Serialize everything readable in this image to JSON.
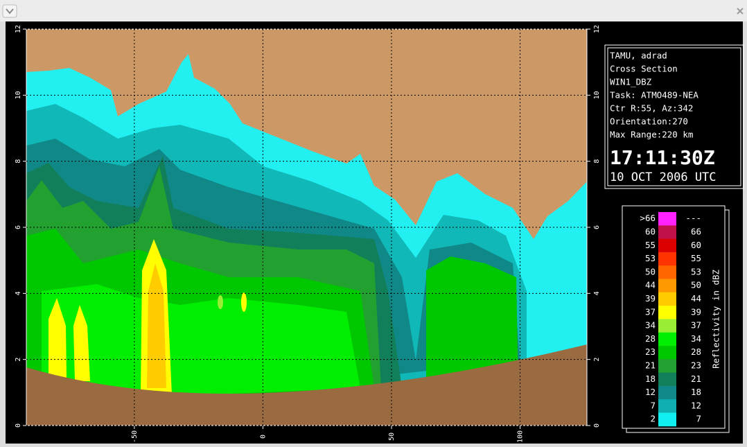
{
  "chart_data": {
    "type": "cross-section",
    "xlim": [
      -92,
      126
    ],
    "xticks": [
      -50,
      0,
      50,
      100
    ],
    "ylim": [
      0,
      12
    ],
    "yticks": [
      0,
      2,
      4,
      6,
      8,
      10,
      12
    ],
    "grid": true,
    "info_panel": {
      "lines": [
        "TAMU, adrad",
        "Cross Section",
        "WIN1_DBZ",
        "Task: ATMO489-NEA",
        "Ctr R:55, Az:342",
        "Orientation:270",
        "Max Range:220 km"
      ],
      "time": "17:11:30Z",
      "date": "10 OCT 2006 UTC"
    },
    "colorbar": {
      "title": "Reflectivity in dBZ",
      "entries": [
        {
          "low": ">66",
          "high": "---",
          "color": "#ff22ff"
        },
        {
          "low": 60,
          "high": 66,
          "color": "#c0104a"
        },
        {
          "low": 55,
          "high": 60,
          "color": "#dd0000"
        },
        {
          "low": 53,
          "high": 55,
          "color": "#ff3300"
        },
        {
          "low": 50,
          "high": 53,
          "color": "#ff6600"
        },
        {
          "low": 44,
          "high": 50,
          "color": "#ff9900"
        },
        {
          "low": 39,
          "high": 44,
          "color": "#ffcc00"
        },
        {
          "low": 37,
          "high": 39,
          "color": "#ffff00"
        },
        {
          "low": 34,
          "high": 37,
          "color": "#99ee33"
        },
        {
          "low": 28,
          "high": 34,
          "color": "#00ee00"
        },
        {
          "low": 23,
          "high": 28,
          "color": "#00c800"
        },
        {
          "low": 21,
          "high": 23,
          "color": "#22a030"
        },
        {
          "low": 18,
          "high": 21,
          "color": "#11805a"
        },
        {
          "low": 12,
          "high": 18,
          "color": "#118888"
        },
        {
          "low": 7,
          "high": 12,
          "color": "#11b0b0"
        },
        {
          "low": 2,
          "high": 7,
          "color": "#11f0f0"
        }
      ]
    }
  }
}
